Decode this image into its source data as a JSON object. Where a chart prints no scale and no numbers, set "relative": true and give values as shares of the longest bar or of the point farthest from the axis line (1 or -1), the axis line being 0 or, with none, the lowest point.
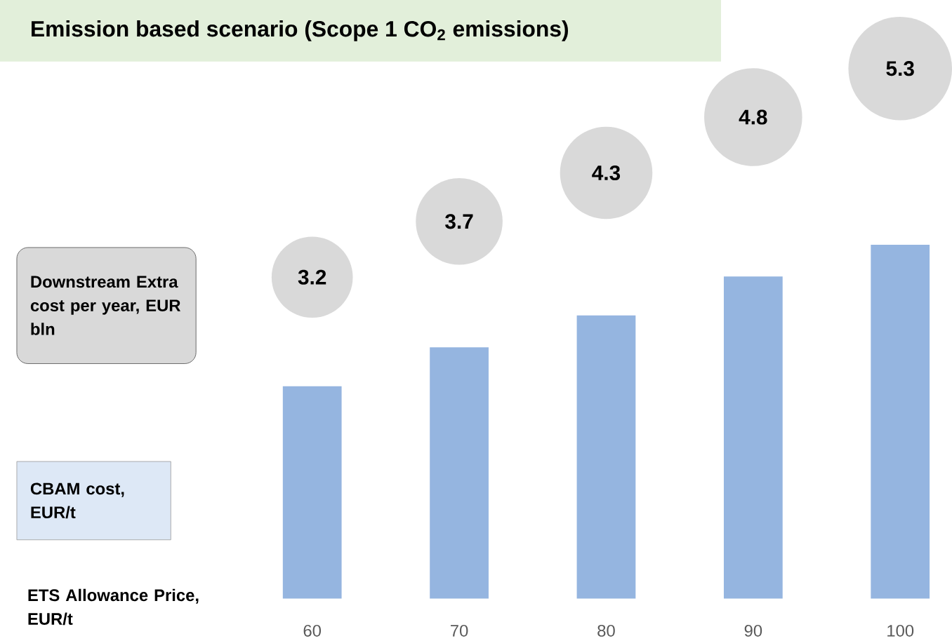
{
  "chart_data": {
    "type": "bar",
    "title": "Emission based scenario (Scope 1 CO$_{2}$ emissions)",
    "categories": [
      "60",
      "70",
      "80",
      "90",
      "100"
    ],
    "values": [
      0.6,
      0.71,
      0.8,
      0.91,
      1
    ],
    "relative": true,
    "color": "#95b5e0",
    "annotations": [
      "Downstream Extra cost per year, EUR bln",
      "CBAM cost, EUR/t",
      "ETS Allowance Price, EUR/t",
      "3.2",
      "3.7",
      "4.3",
      "4.8",
      "5.3"
    ]
  }
}
